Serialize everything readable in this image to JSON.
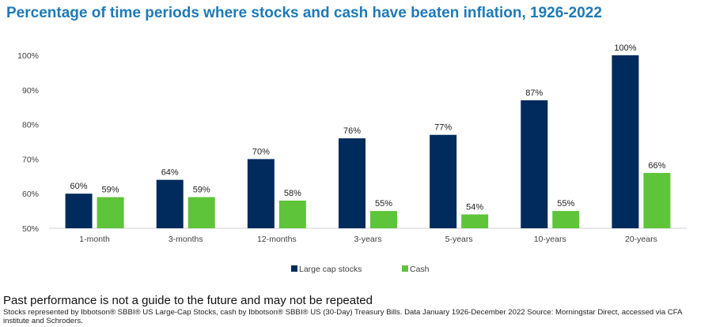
{
  "title": "Percentage of time periods where stocks and cash have beaten inflation, 1926-2022",
  "note": "Past performance is not a guide to the future and may not be repeated",
  "source": "Stocks represented by Ibbotson® SBBI® US Large-Cap Stocks, cash by Ibbotson® SBBI® US (30-Day) Treasury Bills. Data January 1926-December 2022 Source: Morningstar Direct, accessed via CFA institute and Schroders.",
  "colors": {
    "stocks": "#002b5c",
    "cash": "#5ec43a"
  },
  "chart_data": {
    "type": "bar",
    "categories": [
      "1-month",
      "3-months",
      "12-months",
      "3-years",
      "5-years",
      "10-years",
      "20-years"
    ],
    "series": [
      {
        "name": "Large cap stocks",
        "values": [
          60,
          64,
          70,
          76,
          77,
          87,
          100
        ],
        "labels": [
          "60%",
          "64%",
          "70%",
          "76%",
          "77%",
          "87%",
          "100%"
        ]
      },
      {
        "name": "Cash",
        "values": [
          59,
          59,
          58,
          55,
          54,
          55,
          66
        ],
        "labels": [
          "59%",
          "59%",
          "58%",
          "55%",
          "54%",
          "55%",
          "66%"
        ]
      }
    ],
    "yticks": [
      "50%",
      "60%",
      "70%",
      "80%",
      "90%",
      "100%"
    ],
    "ylim": [
      50,
      100
    ],
    "grid": false,
    "legend": "bottom"
  }
}
